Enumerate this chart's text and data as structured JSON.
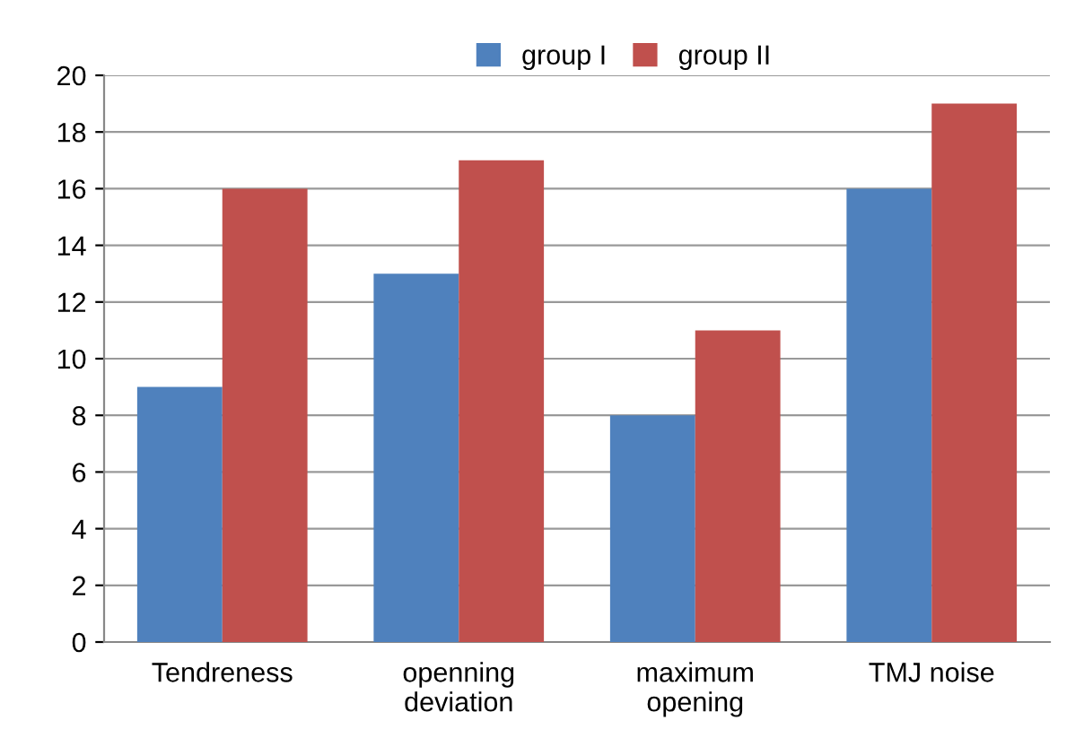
{
  "chart_data": {
    "type": "bar",
    "categories": [
      "Tendreness",
      "openning\ndeviation",
      "maximum\nopening",
      "TMJ noise"
    ],
    "series": [
      {
        "name": "group I",
        "color": "#4f81bd",
        "values": [
          9,
          13,
          8,
          16
        ]
      },
      {
        "name": "group II",
        "color": "#c0504d",
        "values": [
          16,
          17,
          11,
          19
        ]
      }
    ],
    "ylim": [
      0,
      20
    ],
    "yticks": [
      0,
      2,
      4,
      6,
      8,
      10,
      12,
      14,
      16,
      18,
      20
    ],
    "grid": "y",
    "legend": "top"
  }
}
